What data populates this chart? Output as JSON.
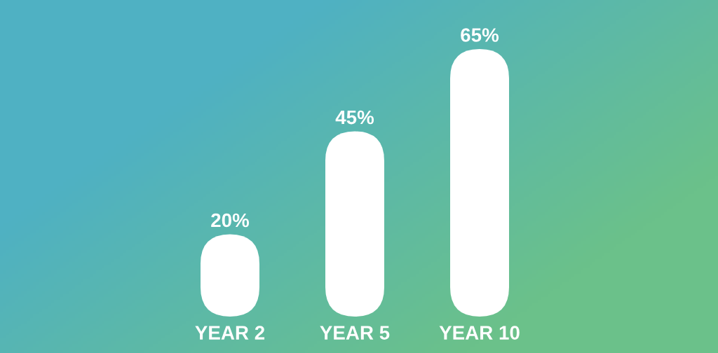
{
  "chart_data": {
    "type": "bar",
    "categories": [
      "YEAR 2",
      "YEAR 5",
      "YEAR 10"
    ],
    "values": [
      20,
      45,
      65
    ],
    "value_labels": [
      "20%",
      "45%",
      "65%"
    ],
    "color": "#ffffff",
    "tick_labels": "x"
  }
}
